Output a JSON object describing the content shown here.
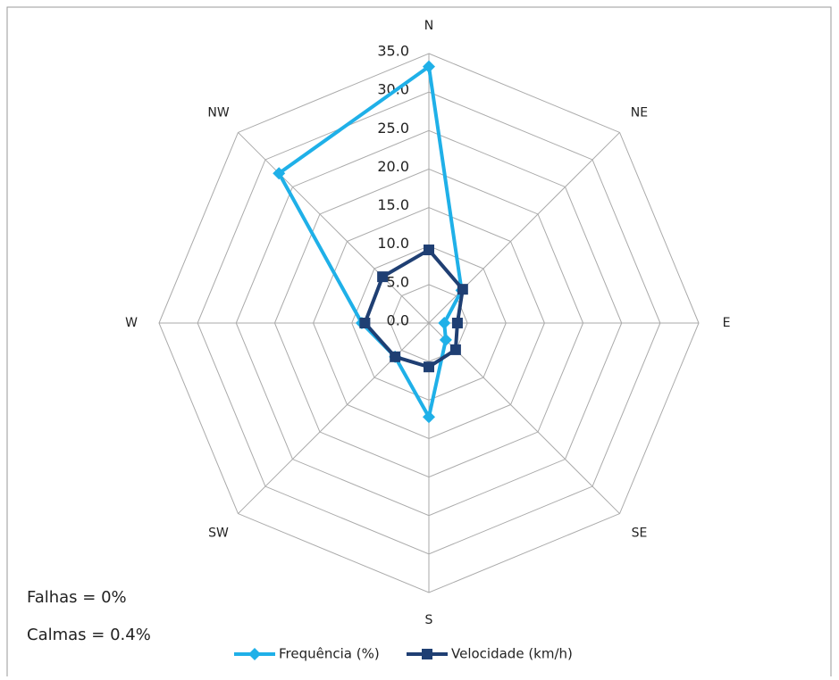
{
  "chart_data": {
    "type": "radar",
    "categories": [
      "N",
      "NE",
      "E",
      "SE",
      "S",
      "SW",
      "W",
      "NW"
    ],
    "series": [
      {
        "name": "Frequência (%)",
        "color": "#1fb0e8",
        "marker": "diamond",
        "values": [
          33.3,
          6.0,
          2.0,
          3.1,
          12.2,
          6.2,
          8.7,
          27.5
        ]
      },
      {
        "name": "Velocidade (km/h)",
        "color": "#1f3f73",
        "marker": "square",
        "values": [
          9.5,
          6.2,
          3.7,
          4.9,
          5.7,
          6.2,
          8.3,
          8.5
        ]
      }
    ],
    "ylim": [
      0,
      35
    ],
    "yticks": [
      {
        "value": 0,
        "label": "0.0"
      },
      {
        "value": 5,
        "label": "5.0"
      },
      {
        "value": 10,
        "label": "10.0"
      },
      {
        "value": 15,
        "label": "15.0"
      },
      {
        "value": 20,
        "label": "20.0"
      },
      {
        "value": 25,
        "label": "25.0"
      },
      {
        "value": 30,
        "label": "30.0"
      },
      {
        "value": 35,
        "label": "35.0"
      }
    ],
    "grid": true,
    "annotations": [
      "Falhas = 0%",
      "Calmas = 0.4%"
    ]
  }
}
